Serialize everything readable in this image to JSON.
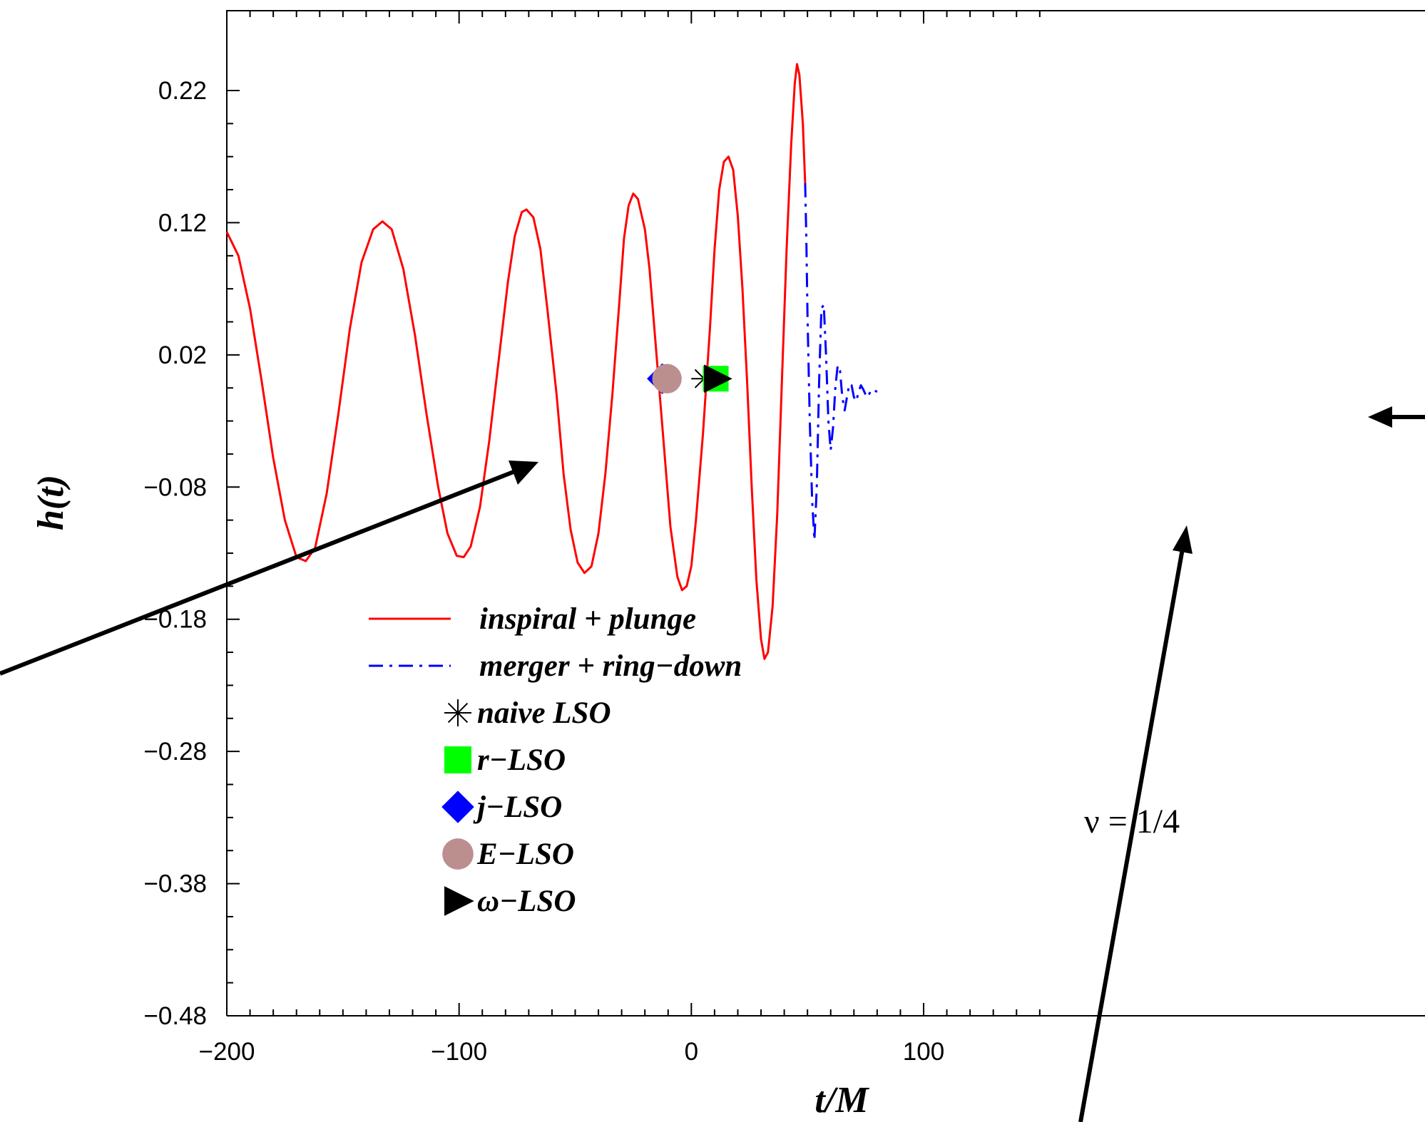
{
  "chart_data": {
    "type": "line",
    "title": "",
    "xlabel": "t/M",
    "ylabel": "h(t)",
    "xlim": [
      -200,
      150
    ],
    "ylim": [
      -0.48,
      0.26
    ],
    "x_ticks": [
      -200,
      -100,
      0,
      100
    ],
    "x_tick_labels": [
      "−200",
      "−100",
      "0",
      "100"
    ],
    "y_ticks": [
      0.22,
      0.12,
      0.02,
      -0.08,
      -0.18,
      -0.28,
      -0.38,
      -0.48
    ],
    "y_tick_labels": [
      "0.22",
      "0.12",
      "0.02",
      "−0.08",
      "−0.18",
      "−0.28",
      "−0.38",
      "−0.48"
    ],
    "grid": false,
    "legend_position": "lower-left",
    "series": [
      {
        "name": "inspiral + plunge",
        "color": "#ff0000",
        "style": "solid",
        "points": [
          [
            -200,
            0.113
          ],
          [
            -195,
            0.095
          ],
          [
            -190,
            0.055
          ],
          [
            -185,
            0.0
          ],
          [
            -180,
            -0.058
          ],
          [
            -175,
            -0.105
          ],
          [
            -170,
            -0.133
          ],
          [
            -166,
            -0.136
          ],
          [
            -162,
            -0.126
          ],
          [
            -157,
            -0.085
          ],
          [
            -152,
            -0.025
          ],
          [
            -147,
            0.04
          ],
          [
            -142,
            0.09
          ],
          [
            -137,
            0.115
          ],
          [
            -133,
            0.121
          ],
          [
            -129,
            0.115
          ],
          [
            -124,
            0.085
          ],
          [
            -119,
            0.035
          ],
          [
            -114,
            -0.025
          ],
          [
            -109,
            -0.08
          ],
          [
            -105,
            -0.115
          ],
          [
            -101,
            -0.132
          ],
          [
            -98,
            -0.133
          ],
          [
            -95,
            -0.125
          ],
          [
            -91,
            -0.095
          ],
          [
            -87,
            -0.045
          ],
          [
            -83,
            0.015
          ],
          [
            -79,
            0.075
          ],
          [
            -76,
            0.11
          ],
          [
            -73,
            0.128
          ],
          [
            -71,
            0.13
          ],
          [
            -68,
            0.124
          ],
          [
            -65,
            0.1
          ],
          [
            -62,
            0.055
          ],
          [
            -58,
            -0.01
          ],
          [
            -55,
            -0.07
          ],
          [
            -52,
            -0.112
          ],
          [
            -49,
            -0.137
          ],
          [
            -46,
            -0.145
          ],
          [
            -43,
            -0.14
          ],
          [
            -40,
            -0.115
          ],
          [
            -37,
            -0.07
          ],
          [
            -34,
            -0.01
          ],
          [
            -31,
            0.06
          ],
          [
            -29,
            0.108
          ],
          [
            -27,
            0.133
          ],
          [
            -25,
            0.142
          ],
          [
            -23,
            0.138
          ],
          [
            -20,
            0.115
          ],
          [
            -18,
            0.085
          ],
          [
            -15,
            0.02
          ],
          [
            -12,
            -0.045
          ],
          [
            -9,
            -0.11
          ],
          [
            -6,
            -0.148
          ],
          [
            -4,
            -0.158
          ],
          [
            -2,
            -0.155
          ],
          [
            0,
            -0.14
          ],
          [
            2,
            -0.105
          ],
          [
            5,
            -0.04
          ],
          [
            8,
            0.04
          ],
          [
            10,
            0.1
          ],
          [
            12,
            0.145
          ],
          [
            14,
            0.166
          ],
          [
            16,
            0.17
          ],
          [
            18,
            0.16
          ],
          [
            20,
            0.125
          ],
          [
            22,
            0.07
          ],
          [
            24,
            0.0
          ],
          [
            26,
            -0.08
          ],
          [
            28,
            -0.15
          ],
          [
            30,
            -0.195
          ],
          [
            31.5,
            -0.21
          ],
          [
            33,
            -0.205
          ],
          [
            35,
            -0.17
          ],
          [
            37,
            -0.1
          ],
          [
            39,
            0.0
          ],
          [
            41,
            0.1
          ],
          [
            43,
            0.18
          ],
          [
            44.5,
            0.225
          ],
          [
            45.5,
            0.24
          ],
          [
            46.5,
            0.232
          ],
          [
            48,
            0.195
          ],
          [
            49,
            0.15
          ]
        ]
      },
      {
        "name": "merger + ring−down",
        "color": "#0000ff",
        "style": "dashdot",
        "points": [
          [
            49,
            0.15
          ],
          [
            49.5,
            0.11
          ],
          [
            50,
            0.05
          ],
          [
            51,
            -0.03
          ],
          [
            52,
            -0.09
          ],
          [
            53,
            -0.12
          ],
          [
            54,
            -0.08
          ],
          [
            55,
            0.0
          ],
          [
            56,
            0.055
          ],
          [
            57,
            0.058
          ],
          [
            58,
            0.02
          ],
          [
            59,
            -0.03
          ],
          [
            60,
            -0.052
          ],
          [
            61,
            -0.035
          ],
          [
            62,
            -0.005
          ],
          [
            63,
            0.012
          ],
          [
            64,
            0.008
          ],
          [
            65,
            -0.012
          ],
          [
            66,
            -0.022
          ],
          [
            67,
            -0.012
          ],
          [
            68,
            -0.002
          ],
          [
            69,
            -0.003
          ],
          [
            70,
            -0.012
          ],
          [
            71,
            -0.015
          ],
          [
            72,
            -0.008
          ],
          [
            73,
            -0.003
          ],
          [
            74,
            -0.006
          ],
          [
            75,
            -0.01
          ],
          [
            76,
            -0.012
          ],
          [
            77,
            -0.008
          ],
          [
            78,
            -0.006
          ],
          [
            80,
            -0.008
          ]
        ]
      }
    ],
    "markers": [
      {
        "name": "naive LSO",
        "symbol": "asterisk",
        "color": "#000000",
        "x": 5.5,
        "y": 0.002
      },
      {
        "name": "r−LSO",
        "symbol": "square",
        "color": "#00ff00",
        "x": 10.5,
        "y": 0.002
      },
      {
        "name": "j−LSO",
        "symbol": "diamond",
        "color": "#0000ff",
        "x": -12.5,
        "y": 0.002
      },
      {
        "name": "E−LSO",
        "symbol": "circle",
        "color": "#bc8f8f",
        "x": -10.5,
        "y": 0.002
      },
      {
        "name": "ω−LSO",
        "symbol": "triangle-right",
        "color": "#000000",
        "x": 11,
        "y": 0.002
      }
    ],
    "annotations": {
      "nu_label": "ν = 1/4"
    }
  }
}
